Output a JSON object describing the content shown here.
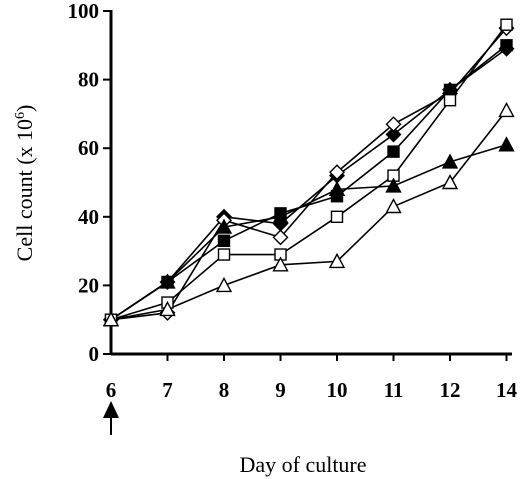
{
  "chart_data": {
    "type": "line",
    "title": "",
    "xlabel": "Day of culture",
    "ylabel": "Cell count (x 10",
    "ylabel_sup": "6",
    "ylabel_close": ")",
    "categories": [
      "6",
      "7",
      "8",
      "9",
      "10",
      "11",
      "12",
      "14"
    ],
    "yticks": [
      "0",
      "20",
      "40",
      "60",
      "80",
      "100"
    ],
    "ylim": [
      0,
      100
    ],
    "grid": false,
    "legend": "none",
    "annotation": "upward arrow below day 6",
    "series": [
      {
        "marker": "filled-diamond",
        "values": [
          10,
          21,
          40,
          38,
          52,
          64,
          77,
          89
        ]
      },
      {
        "marker": "open-diamond",
        "values": [
          10,
          12,
          39,
          34,
          53,
          67,
          76,
          95
        ]
      },
      {
        "marker": "filled-square",
        "values": [
          10,
          21,
          33,
          41,
          46,
          59,
          77,
          90
        ]
      },
      {
        "marker": "open-square",
        "values": [
          10,
          15,
          29,
          29,
          40,
          52,
          74,
          96
        ]
      },
      {
        "marker": "filled-triangle",
        "values": [
          10,
          21,
          37,
          40,
          48,
          49,
          56,
          61
        ]
      },
      {
        "marker": "open-triangle",
        "values": [
          10,
          13,
          20,
          26,
          27,
          43,
          50,
          71
        ]
      }
    ]
  }
}
